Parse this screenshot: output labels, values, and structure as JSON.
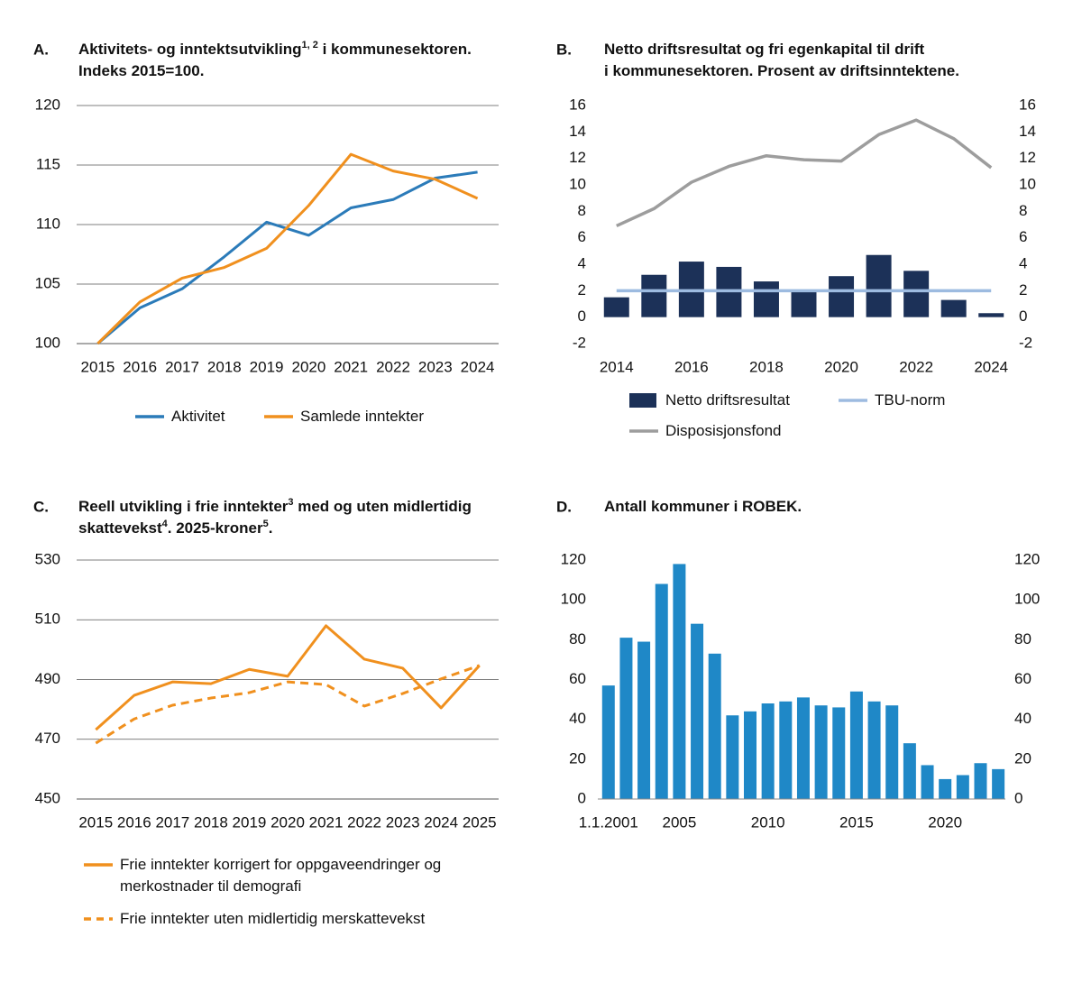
{
  "chart_data": [
    {
      "type": "line",
      "label": "A.",
      "title": [
        [
          "Aktivitets- og inntektsutvikling",
          "1, 2",
          " i kommunesektoren."
        ],
        [
          "Indeks 2015=100."
        ]
      ],
      "categories": [
        "2015",
        "2016",
        "2017",
        "2018",
        "2019",
        "2020",
        "2021",
        "2022",
        "2023",
        "2024"
      ],
      "series": [
        {
          "name": "Aktivitet",
          "color": "#2b7bb9",
          "values": [
            100,
            103.0,
            104.6,
            107.3,
            110.2,
            109.1,
            111.4,
            112.1,
            113.9,
            114.4
          ]
        },
        {
          "name": "Samlede inntekter",
          "color": "#f0901e",
          "values": [
            100,
            103.5,
            105.5,
            106.4,
            108.0,
            111.6,
            115.9,
            114.5,
            113.8,
            112.2
          ]
        }
      ],
      "ylim": [
        100,
        120
      ],
      "yticks": [
        100,
        105,
        110,
        115,
        120
      ],
      "grid": true
    },
    {
      "type": "bar",
      "label": "B.",
      "title": [
        [
          "Netto driftsresultat og fri egenkapital til drift"
        ],
        [
          "i kommunesektoren.  Prosent av driftsinntektene."
        ]
      ],
      "x": [
        2014,
        2015,
        2016,
        2017,
        2018,
        2019,
        2020,
        2021,
        2022,
        2023,
        2024
      ],
      "xlim": [
        2013.5,
        2024.5
      ],
      "xticks": [
        2014,
        2016,
        2018,
        2020,
        2022,
        2024
      ],
      "series": [
        {
          "name": "Netto driftsresultat",
          "type": "bar",
          "color": "#1c3158",
          "values": [
            1.5,
            3.2,
            4.2,
            3.8,
            2.7,
            2.0,
            3.1,
            4.7,
            3.5,
            1.3,
            0.3
          ]
        },
        {
          "name": "TBU-norm",
          "type": "line",
          "color": "#9dbbe0",
          "values": [
            2,
            2,
            2,
            2,
            2,
            2,
            2,
            2,
            2,
            2,
            2
          ]
        },
        {
          "name": "Disposisjonsfond",
          "type": "line",
          "color": "#9d9d9d",
          "values": [
            6.9,
            8.2,
            10.2,
            11.4,
            12.2,
            11.9,
            11.8,
            13.8,
            14.9,
            13.5,
            11.3
          ]
        }
      ],
      "ylim": [
        -2,
        16
      ],
      "yticks": [
        -2,
        0,
        2,
        4,
        6,
        8,
        10,
        12,
        14,
        16
      ],
      "y2lim": [
        -2,
        16
      ],
      "y2ticks": [
        -2,
        0,
        2,
        4,
        6,
        8,
        10,
        12,
        14,
        16
      ],
      "grid": false
    },
    {
      "type": "line",
      "label": "C.",
      "title": [
        [
          "Reell utvikling i frie inntekter",
          "3",
          " med og uten midlertidig"
        ],
        [
          "skattevekst",
          "4",
          ". 2025-kroner",
          "5",
          "."
        ]
      ],
      "categories": [
        "2015",
        "2016",
        "2017",
        "2018",
        "2019",
        "2020",
        "2021",
        "2022",
        "2023",
        "2024",
        "2025"
      ],
      "series": [
        {
          "name": "Frie inntekter korrigert for oppgaveendringer og merkostnader til demografi",
          "color": "#f0901e",
          "values": [
            473.2,
            484.7,
            489.2,
            488.6,
            493.4,
            491.1,
            508.0,
            496.8,
            493.8,
            480.5,
            494.7
          ]
        },
        {
          "name": "Frie inntekter uten midlertidig merskattevekst",
          "color": "#f0901e",
          "dash": true,
          "values": [
            468.7,
            476.8,
            481.4,
            483.8,
            485.6,
            489.2,
            488.3,
            481.1,
            485.3,
            490.2,
            494.7
          ]
        }
      ],
      "ylim": [
        450,
        530
      ],
      "yticks": [
        450,
        470,
        490,
        510,
        530
      ],
      "grid": true
    },
    {
      "type": "bar",
      "label": "D.",
      "title": [
        [
          "Antall kommuner i ROBEK."
        ]
      ],
      "x": [
        2001,
        2002,
        2003,
        2004,
        2005,
        2006,
        2007,
        2008,
        2009,
        2010,
        2011,
        2012,
        2013,
        2014,
        2015,
        2016,
        2017,
        2018,
        2019,
        2020,
        2021,
        2022,
        2023
      ],
      "xlim": [
        2000.4,
        2023.4
      ],
      "xticks": [
        {
          "value": 2001,
          "label": "1.1.2001"
        },
        2005,
        2010,
        2015,
        2020
      ],
      "series": [
        {
          "color": "#1f88c7",
          "values": [
            57,
            81,
            79,
            108,
            118,
            88,
            73,
            42,
            44,
            48,
            49,
            51,
            47,
            46,
            54,
            49,
            47,
            28,
            17,
            10,
            12,
            18,
            15
          ]
        }
      ],
      "ylim": [
        0,
        120
      ],
      "yticks": [
        0,
        20,
        40,
        60,
        80,
        100,
        120
      ],
      "y2lim": [
        0,
        120
      ],
      "y2ticks": [
        0,
        20,
        40,
        60,
        80,
        100,
        120
      ],
      "grid": false
    }
  ]
}
